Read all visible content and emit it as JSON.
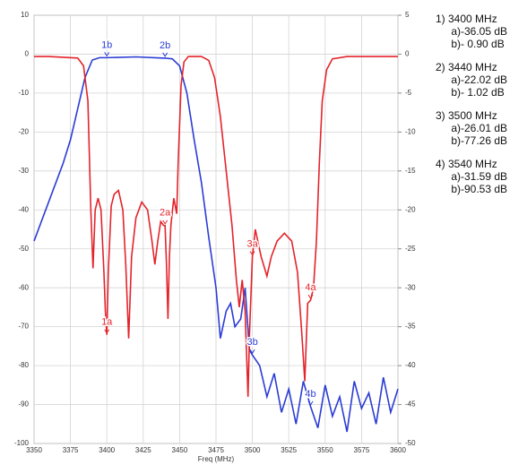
{
  "chart_data": {
    "type": "line",
    "xlabel": "Freq (MHz)",
    "xlim": [
      3350,
      3600
    ],
    "xticks": [
      3350,
      3375,
      3400,
      3425,
      3450,
      3475,
      3500,
      3525,
      3550,
      3575,
      3600
    ],
    "ylim": [
      -100,
      10
    ],
    "yticks": [
      10,
      0,
      -10,
      -20,
      -30,
      -40,
      -50,
      -60,
      -70,
      -80,
      -90,
      -100
    ],
    "y2lim": [
      -50,
      5
    ],
    "y2ticks": [
      5,
      0,
      -5,
      -10,
      -15,
      -20,
      -25,
      -30,
      -35,
      -40,
      -45,
      -50
    ],
    "grid": true,
    "series": [
      {
        "color": "#2a3cd4",
        "axis": "y",
        "x": [
          3350,
          3360,
          3370,
          3375,
          3380,
          3385,
          3390,
          3395,
          3400,
          3420,
          3440,
          3445,
          3450,
          3455,
          3460,
          3465,
          3470,
          3475,
          3478,
          3482,
          3485,
          3488,
          3492,
          3495,
          3498,
          3500,
          3505,
          3510,
          3515,
          3520,
          3525,
          3530,
          3535,
          3540,
          3545,
          3550,
          3555,
          3560,
          3565,
          3570,
          3575,
          3580,
          3585,
          3590,
          3595,
          3600
        ],
        "values": [
          -48,
          -38,
          -28,
          -22,
          -14,
          -6,
          -1.5,
          -0.9,
          -0.9,
          -0.7,
          -1.02,
          -1.2,
          -3,
          -10,
          -22,
          -33,
          -47,
          -60,
          -73,
          -66,
          -64,
          -70,
          -68,
          -60,
          -76,
          -77.26,
          -80,
          -88,
          -82,
          -92,
          -86,
          -95,
          -84,
          -90.53,
          -96,
          -85,
          -93,
          -88,
          -97,
          -84,
          -91,
          -87,
          -95,
          -83,
          -92,
          -86
        ]
      },
      {
        "color": "#e3242b",
        "axis": "y2",
        "x": [
          3350,
          3360,
          3370,
          3380,
          3384,
          3387,
          3389,
          3390.5,
          3392,
          3394,
          3396,
          3398,
          3399,
          3400,
          3401,
          3403,
          3405,
          3408,
          3411,
          3413,
          3415,
          3417,
          3420,
          3424,
          3428,
          3431,
          3433,
          3435,
          3437,
          3439,
          3440,
          3441,
          3442,
          3443,
          3444,
          3446,
          3448,
          3449,
          3451,
          3453,
          3456,
          3465,
          3470,
          3474,
          3478,
          3482,
          3486,
          3489,
          3491,
          3493,
          3495,
          3497,
          3498,
          3500,
          3502,
          3506,
          3510,
          3513,
          3517,
          3522,
          3527,
          3531,
          3534,
          3536,
          3538,
          3540,
          3542,
          3544,
          3546,
          3548,
          3551,
          3555,
          3565,
          3600
        ],
        "values": [
          -0.3,
          -0.3,
          -0.4,
          -0.5,
          -1.5,
          -6,
          -20,
          -27.5,
          -20,
          -18.5,
          -20,
          -28,
          -33,
          -36.05,
          -28,
          -19.5,
          -18,
          -17.5,
          -20,
          -27,
          -36.5,
          -26,
          -21,
          -19,
          -20,
          -24,
          -27,
          -24,
          -21.5,
          -22,
          -22.02,
          -27,
          -34,
          -26,
          -22,
          -18.5,
          -20.5,
          -14,
          -4,
          -1,
          -0.3,
          -0.3,
          -0.8,
          -3,
          -8,
          -15,
          -22,
          -29,
          -32.5,
          -29,
          -33,
          -44,
          -36,
          -26.01,
          -22.5,
          -26,
          -28.5,
          -26,
          -24,
          -23,
          -24,
          -28,
          -36,
          -42,
          -32,
          -31.59,
          -30,
          -24,
          -14,
          -6,
          -2,
          -0.6,
          -0.3,
          -0.3
        ]
      }
    ],
    "markers": [
      {
        "freq": 3400,
        "heading": "1) 3400 MHz",
        "a": {
          "tag": "1a",
          "prefix": "a)",
          "value": -36.05,
          "label": "-36.05 dB"
        },
        "b": {
          "tag": "1b",
          "prefix": "b)",
          "value": -0.9,
          "label": "-  0.90 dB"
        }
      },
      {
        "freq": 3440,
        "heading": "2) 3440 MHz",
        "a": {
          "tag": "2a",
          "prefix": "a)",
          "value": -22.02,
          "label": "-22.02 dB"
        },
        "b": {
          "tag": "2b",
          "prefix": "b)",
          "value": -1.02,
          "label": "-  1.02 dB"
        }
      },
      {
        "freq": 3500,
        "heading": "3) 3500 MHz",
        "a": {
          "tag": "3a",
          "prefix": "a)",
          "value": -26.01,
          "label": "-26.01 dB"
        },
        "b": {
          "tag": "3b",
          "prefix": "b)",
          "value": -77.26,
          "label": "-77.26 dB"
        }
      },
      {
        "freq": 3540,
        "heading": "4) 3540 MHz",
        "a": {
          "tag": "4a",
          "prefix": "a)",
          "value": -31.59,
          "label": "-31.59 dB"
        },
        "b": {
          "tag": "4b",
          "prefix": "b)",
          "value": -90.53,
          "label": "-90.53 dB"
        }
      }
    ]
  }
}
